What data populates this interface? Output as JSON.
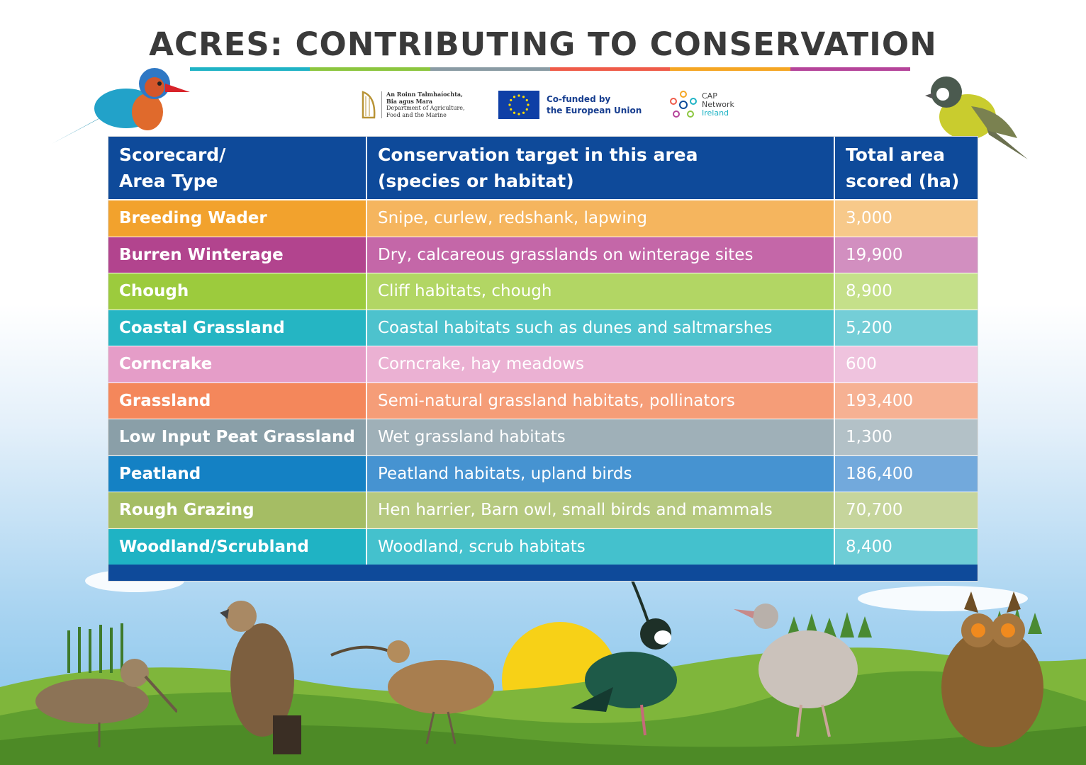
{
  "title": "ACRES: CONTRIBUTING TO CONSERVATION",
  "title_bar_colors": [
    "#1fb3c5",
    "#8cc63f",
    "#8a9ba4",
    "#ef5b49",
    "#f5a623",
    "#b5449a"
  ],
  "logos": {
    "department": {
      "lines": [
        "An Roinn Talmhaíochta,",
        "Bia agus Mara",
        "Department of Agriculture,",
        "Food and the Marine"
      ],
      "icon": "harp-icon"
    },
    "eu": {
      "line1": "Co-funded by",
      "line2": "the European Union",
      "icon": "eu-flag-icon"
    },
    "cap": {
      "line1": "CAP",
      "line2": "Network",
      "line3": "Ireland",
      "icon": "cap-network-icon"
    }
  },
  "table": {
    "header_color": "#0e4a9a",
    "headers": {
      "area_type_line1": "Scorecard/",
      "area_type_line2": "Area Type",
      "target_line1": "Conservation target in this area",
      "target_line2": "(species or habitat)",
      "area_line1": "Total area",
      "area_line2": "scored (ha)"
    },
    "rows": [
      {
        "area_type": "Breeding Wader",
        "target": "Snipe, curlew, redshank, lapwing",
        "total": "3,000",
        "colors": [
          "#f2a22d",
          "#f5b55e",
          "#f7c98a"
        ]
      },
      {
        "area_type": "Burren Winterage",
        "target": "Dry, calcareous grasslands on winterage sites",
        "total": "19,900",
        "colors": [
          "#b2448e",
          "#c467a8",
          "#d28fc0"
        ]
      },
      {
        "area_type": "Chough",
        "target": "Cliff habitats, chough",
        "total": "8,900",
        "colors": [
          "#9ccb3d",
          "#b2d664",
          "#c5e08a"
        ]
      },
      {
        "area_type": "Coastal Grassland",
        "target": "Coastal habitats such as dunes and saltmarshes",
        "total": "5,200",
        "colors": [
          "#25b5c3",
          "#4dc2cd",
          "#74ced7"
        ]
      },
      {
        "area_type": "Corncrake",
        "target": "Corncrake, hay meadows",
        "total": "600",
        "colors": [
          "#e59dc8",
          "#ebb1d3",
          "#efc3de"
        ]
      },
      {
        "area_type": "Grassland",
        "target": "Semi-natural grassland habitats, pollinators",
        "total": "193,400",
        "colors": [
          "#f4875b",
          "#f59d78",
          "#f6b193"
        ]
      },
      {
        "area_type": "Low Input Peat Grassland",
        "target": "Wet grassland habitats",
        "total": "1,300",
        "colors": [
          "#8a9fa8",
          "#9fb0b8",
          "#b3c1c7"
        ]
      },
      {
        "area_type": "Peatland",
        "target": "Peatland habitats, upland birds",
        "total": "186,400",
        "colors": [
          "#1481c4",
          "#4693d1",
          "#72a9dc"
        ]
      },
      {
        "area_type": "Rough Grazing",
        "target": "Hen harrier, Barn owl, small birds and mammals",
        "total": "70,700",
        "colors": [
          "#a5bd64",
          "#b6c980",
          "#c6d59c"
        ]
      },
      {
        "area_type": "Woodland/Scrubland",
        "target": "Woodland, scrub habitats",
        "total": "8,400",
        "colors": [
          "#1fb3c4",
          "#44c1cd",
          "#6ecdd6"
        ]
      }
    ]
  },
  "illustrations": [
    "kingfisher-icon",
    "finch-icon",
    "snipe-icon",
    "eagle-icon",
    "curlew-icon",
    "lapwing-icon",
    "corncrake-icon",
    "owl-icon",
    "sun-icon"
  ]
}
